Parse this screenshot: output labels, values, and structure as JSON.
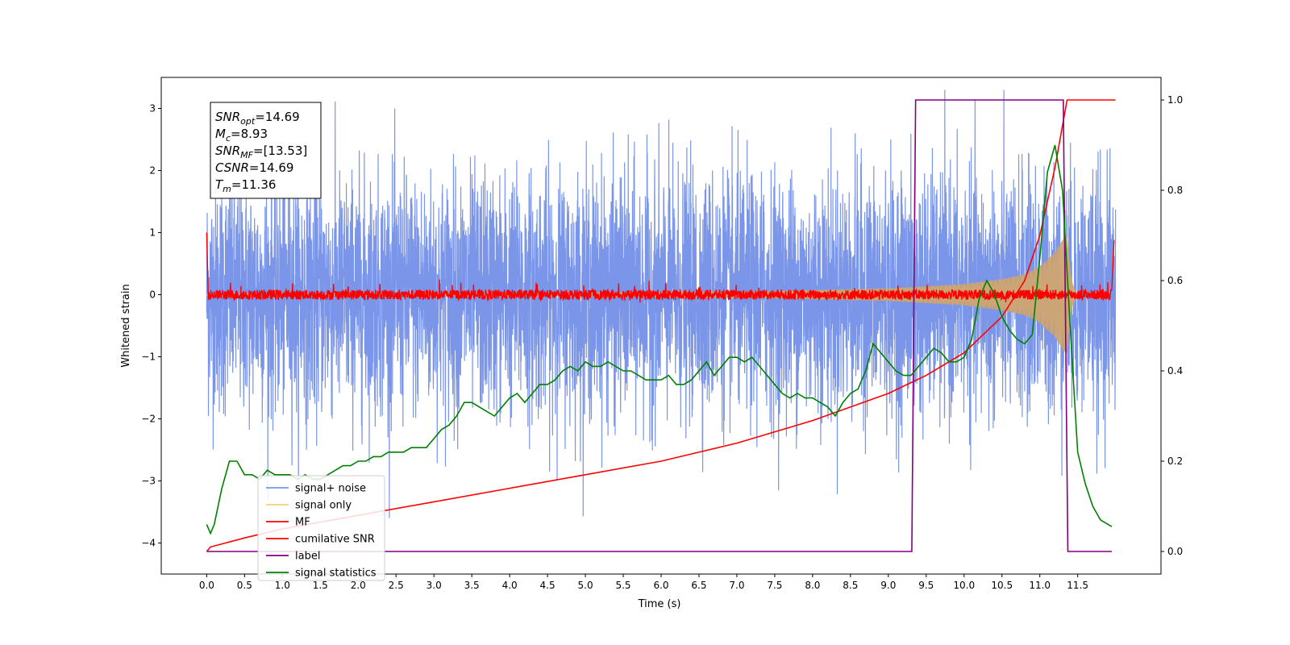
{
  "chart_data": {
    "type": "line",
    "xlabel": "Time (s)",
    "ylabel": "Whitened strain",
    "xlim": [
      -0.6,
      12.6
    ],
    "ylim": [
      -4.5,
      3.5
    ],
    "y2lim": [
      -0.05,
      1.05
    ],
    "xticks": [
      "0.0",
      "0.5",
      "1.0",
      "1.5",
      "2.0",
      "2.5",
      "3.0",
      "3.5",
      "4.0",
      "4.5",
      "5.0",
      "5.5",
      "6.0",
      "6.5",
      "7.0",
      "7.5",
      "8.0",
      "8.5",
      "9.0",
      "9.5",
      "10.0",
      "10.5",
      "11.0",
      "11.5"
    ],
    "yticks": [
      "3",
      "2",
      "1",
      "0",
      "−1",
      "−2",
      "−3",
      "−4"
    ],
    "y2ticks": [
      "1.0",
      "0.8",
      "0.6",
      "0.4",
      "0.2",
      "0.0"
    ],
    "legend_position": "lower-left",
    "textbox": [
      {
        "sym": "SNR",
        "sub": "opt",
        "val": "=14.69"
      },
      {
        "sym": "M",
        "sub": "c",
        "val": "=8.93"
      },
      {
        "sym": "SNR",
        "sub": "MF",
        "val": "=[13.53]"
      },
      {
        "sym": "CSNR",
        "sub": "",
        "val": "=14.69"
      },
      {
        "sym": "T",
        "sub": "m",
        "val": "=11.36"
      }
    ],
    "series": [
      {
        "name": "signal+ noise",
        "color": "#7b96e8",
        "axis": "left",
        "kind": "noise",
        "t_range": [
          0,
          12
        ],
        "envelope_min": [
          -3.6,
          3.3
        ]
      },
      {
        "name": "signal only",
        "color": "#f5d27a",
        "axis": "left",
        "kind": "chirp",
        "envelope_t": [
          0,
          5.0,
          7.5,
          9.0,
          10.0,
          10.5,
          10.8,
          11.0,
          11.2,
          11.3,
          11.36,
          11.42,
          11.5
        ],
        "envelope_a": [
          0.01,
          0.03,
          0.06,
          0.1,
          0.17,
          0.25,
          0.33,
          0.45,
          0.68,
          0.88,
          0.95,
          0.2,
          0.0
        ]
      },
      {
        "name": "MF",
        "color": "#ff0000",
        "axis": "left",
        "kind": "mf",
        "start_value": 1.0,
        "end_value": 0.88
      },
      {
        "name": "cumilative SNR",
        "color": "#ff0000",
        "axis": "right",
        "x": [
          0,
          0.05,
          0.5,
          1,
          2,
          3,
          4,
          5,
          6,
          7,
          8,
          9,
          9.5,
          10,
          10.5,
          10.8,
          11.0,
          11.2,
          11.36,
          11.4,
          12.0
        ],
        "y": [
          0.0,
          0.01,
          0.03,
          0.05,
          0.08,
          0.11,
          0.14,
          0.17,
          0.2,
          0.24,
          0.29,
          0.35,
          0.39,
          0.44,
          0.52,
          0.6,
          0.7,
          0.85,
          1.0,
          1.0,
          1.0
        ]
      },
      {
        "name": "label",
        "color": "#800080",
        "axis": "right",
        "x": [
          0,
          9.31,
          9.36,
          11.31,
          11.37,
          11.95
        ],
        "y": [
          0,
          0,
          1,
          1,
          0,
          0
        ]
      },
      {
        "name": "signal statistics",
        "color": "#008000",
        "axis": "right",
        "x": [
          0,
          0.05,
          0.1,
          0.15,
          0.2,
          0.3,
          0.4,
          0.5,
          0.6,
          0.7,
          0.8,
          0.9,
          1.0,
          1.1,
          1.2,
          1.3,
          1.4,
          1.5,
          1.6,
          1.7,
          1.8,
          1.9,
          2.0,
          2.1,
          2.2,
          2.3,
          2.4,
          2.5,
          2.6,
          2.7,
          2.8,
          2.9,
          3.0,
          3.1,
          3.2,
          3.3,
          3.4,
          3.5,
          3.6,
          3.7,
          3.8,
          3.9,
          4.0,
          4.1,
          4.2,
          4.3,
          4.4,
          4.5,
          4.6,
          4.7,
          4.8,
          4.9,
          5.0,
          5.1,
          5.2,
          5.3,
          5.4,
          5.5,
          5.6,
          5.7,
          5.8,
          5.9,
          6.0,
          6.1,
          6.2,
          6.3,
          6.4,
          6.5,
          6.6,
          6.7,
          6.8,
          6.9,
          7.0,
          7.1,
          7.2,
          7.3,
          7.4,
          7.5,
          7.6,
          7.7,
          7.8,
          7.9,
          8.0,
          8.1,
          8.2,
          8.3,
          8.4,
          8.5,
          8.6,
          8.7,
          8.8,
          8.9,
          9.0,
          9.1,
          9.2,
          9.3,
          9.4,
          9.5,
          9.6,
          9.7,
          9.8,
          9.9,
          10.0,
          10.1,
          10.2,
          10.3,
          10.4,
          10.5,
          10.6,
          10.7,
          10.8,
          10.9,
          11.0,
          11.1,
          11.2,
          11.3,
          11.4,
          11.5,
          11.6,
          11.7,
          11.8,
          11.9,
          11.95
        ],
        "y": [
          0.06,
          0.04,
          0.06,
          0.1,
          0.14,
          0.2,
          0.2,
          0.17,
          0.17,
          0.16,
          0.18,
          0.17,
          0.17,
          0.17,
          0.16,
          0.17,
          0.16,
          0.16,
          0.17,
          0.18,
          0.19,
          0.19,
          0.2,
          0.2,
          0.21,
          0.21,
          0.22,
          0.22,
          0.22,
          0.23,
          0.23,
          0.23,
          0.25,
          0.27,
          0.28,
          0.3,
          0.33,
          0.33,
          0.32,
          0.31,
          0.3,
          0.32,
          0.34,
          0.35,
          0.33,
          0.35,
          0.37,
          0.37,
          0.38,
          0.4,
          0.41,
          0.4,
          0.42,
          0.41,
          0.41,
          0.42,
          0.41,
          0.4,
          0.4,
          0.39,
          0.38,
          0.38,
          0.38,
          0.39,
          0.37,
          0.37,
          0.38,
          0.4,
          0.42,
          0.39,
          0.41,
          0.43,
          0.43,
          0.42,
          0.43,
          0.41,
          0.39,
          0.37,
          0.35,
          0.34,
          0.35,
          0.34,
          0.34,
          0.33,
          0.32,
          0.3,
          0.33,
          0.35,
          0.36,
          0.4,
          0.46,
          0.44,
          0.42,
          0.4,
          0.39,
          0.39,
          0.41,
          0.43,
          0.45,
          0.44,
          0.42,
          0.42,
          0.43,
          0.47,
          0.56,
          0.6,
          0.57,
          0.52,
          0.49,
          0.47,
          0.46,
          0.48,
          0.65,
          0.84,
          0.9,
          0.8,
          0.5,
          0.22,
          0.15,
          0.1,
          0.07,
          0.06,
          0.055
        ]
      }
    ]
  }
}
